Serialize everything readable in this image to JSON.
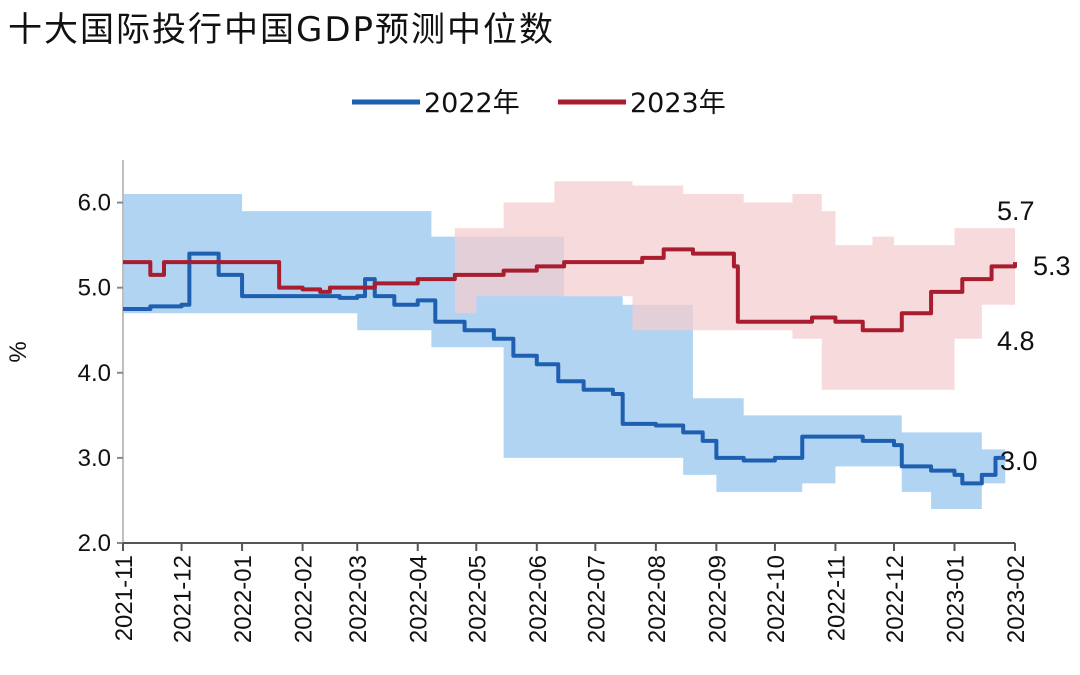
{
  "chart_data": {
    "type": "line",
    "title": "十大国际投行中国GDP预测中位数",
    "ylabel": "%",
    "xlabel": "",
    "ylim": [
      2.0,
      6.5
    ],
    "yticks": [
      "2.0",
      "3.0",
      "4.0",
      "5.0",
      "6.0"
    ],
    "grid": false,
    "legend_position": "top-center",
    "x_ticks": [
      "2021-11",
      "2021-12",
      "2022-01",
      "2022-02",
      "2022-03",
      "2022-04",
      "2022-05",
      "2022-06",
      "2022-07",
      "2022-08",
      "2022-09",
      "2022-10",
      "2022-11",
      "2022-12",
      "2023-01",
      "2023-02"
    ],
    "x_range_months": [
      "2021-11",
      "2023-02"
    ],
    "colors": {
      "2022年": "#1f5fb0",
      "2022年_band": "#a8cff2",
      "2023年": "#a81d2f",
      "2023年_band": "#f4cdcf"
    },
    "series": [
      {
        "name": "2022年",
        "band_color": "#a8cff2",
        "line_color": "#1f5fb0",
        "end_label": "3.0",
        "points": [
          [
            "2021-11-01",
            4.75
          ],
          [
            "2021-11-15",
            4.78
          ],
          [
            "2021-12-01",
            4.8
          ],
          [
            "2021-12-05",
            5.4
          ],
          [
            "2021-12-20",
            5.15
          ],
          [
            "2022-01-01",
            4.9
          ],
          [
            "2022-01-20",
            4.9
          ],
          [
            "2022-02-05",
            4.9
          ],
          [
            "2022-02-20",
            4.88
          ],
          [
            "2022-03-01",
            4.9
          ],
          [
            "2022-03-05",
            5.1
          ],
          [
            "2022-03-10",
            4.9
          ],
          [
            "2022-03-20",
            4.8
          ],
          [
            "2022-04-01",
            4.85
          ],
          [
            "2022-04-10",
            4.6
          ],
          [
            "2022-04-25",
            4.5
          ],
          [
            "2022-05-10",
            4.4
          ],
          [
            "2022-05-20",
            4.2
          ],
          [
            "2022-06-01",
            4.1
          ],
          [
            "2022-06-12",
            3.9
          ],
          [
            "2022-06-25",
            3.8
          ],
          [
            "2022-07-10",
            3.75
          ],
          [
            "2022-07-15",
            3.4
          ],
          [
            "2022-08-01",
            3.38
          ],
          [
            "2022-08-15",
            3.3
          ],
          [
            "2022-08-25",
            3.2
          ],
          [
            "2022-09-01",
            3.0
          ],
          [
            "2022-09-15",
            2.97
          ],
          [
            "2022-10-01",
            3.0
          ],
          [
            "2022-10-15",
            3.25
          ],
          [
            "2022-11-01",
            3.25
          ],
          [
            "2022-11-15",
            3.2
          ],
          [
            "2022-12-01",
            3.15
          ],
          [
            "2022-12-05",
            2.9
          ],
          [
            "2022-12-20",
            2.85
          ],
          [
            "2023-01-01",
            2.8
          ],
          [
            "2023-01-05",
            2.7
          ],
          [
            "2023-01-15",
            2.8
          ],
          [
            "2023-01-22",
            3.0
          ],
          [
            "2023-01-27",
            3.0
          ]
        ],
        "band": [
          [
            "2021-11-01",
            4.7,
            6.1
          ],
          [
            "2021-12-01",
            4.7,
            6.1
          ],
          [
            "2022-01-01",
            4.7,
            5.9
          ],
          [
            "2022-02-01",
            4.7,
            5.9
          ],
          [
            "2022-03-01",
            4.5,
            5.9
          ],
          [
            "2022-04-01",
            4.5,
            5.9
          ],
          [
            "2022-04-08",
            4.3,
            5.6
          ],
          [
            "2022-05-01",
            4.3,
            5.6
          ],
          [
            "2022-05-15",
            3.0,
            5.6
          ],
          [
            "2022-06-15",
            3.0,
            4.9
          ],
          [
            "2022-07-15",
            3.0,
            4.8
          ],
          [
            "2022-08-15",
            2.8,
            4.8
          ],
          [
            "2022-08-20",
            2.8,
            3.7
          ],
          [
            "2022-09-01",
            2.6,
            3.7
          ],
          [
            "2022-09-15",
            2.6,
            3.5
          ],
          [
            "2022-10-01",
            2.6,
            3.5
          ],
          [
            "2022-10-15",
            2.7,
            3.5
          ],
          [
            "2022-11-01",
            2.9,
            3.5
          ],
          [
            "2022-12-01",
            2.9,
            3.5
          ],
          [
            "2022-12-05",
            2.6,
            3.3
          ],
          [
            "2022-12-20",
            2.4,
            3.3
          ],
          [
            "2023-01-01",
            2.4,
            3.3
          ],
          [
            "2023-01-15",
            2.7,
            3.1
          ],
          [
            "2023-01-27",
            2.7,
            3.1
          ]
        ]
      },
      {
        "name": "2023年",
        "band_color": "#f4cdcf",
        "line_color": "#a81d2f",
        "end_label_high": "5.7",
        "end_label": "5.3",
        "end_label_low": "4.8",
        "points": [
          [
            "2021-11-01",
            5.3
          ],
          [
            "2021-11-15",
            5.15
          ],
          [
            "2021-11-22",
            5.3
          ],
          [
            "2022-01-15",
            5.3
          ],
          [
            "2022-01-20",
            5.0
          ],
          [
            "2022-02-01",
            4.98
          ],
          [
            "2022-02-10",
            4.95
          ],
          [
            "2022-02-15",
            5.0
          ],
          [
            "2022-03-10",
            5.05
          ],
          [
            "2022-04-01",
            5.1
          ],
          [
            "2022-04-20",
            5.15
          ],
          [
            "2022-05-15",
            5.2
          ],
          [
            "2022-06-01",
            5.25
          ],
          [
            "2022-06-15",
            5.3
          ],
          [
            "2022-07-10",
            5.3
          ],
          [
            "2022-07-25",
            5.35
          ],
          [
            "2022-08-05",
            5.45
          ],
          [
            "2022-08-20",
            5.4
          ],
          [
            "2022-09-10",
            5.25
          ],
          [
            "2022-09-12",
            4.6
          ],
          [
            "2022-10-01",
            4.6
          ],
          [
            "2022-10-20",
            4.65
          ],
          [
            "2022-11-01",
            4.6
          ],
          [
            "2022-11-15",
            4.5
          ],
          [
            "2022-12-01",
            4.5
          ],
          [
            "2022-12-05",
            4.7
          ],
          [
            "2022-12-20",
            4.95
          ],
          [
            "2023-01-01",
            4.95
          ],
          [
            "2023-01-05",
            5.1
          ],
          [
            "2023-01-12",
            5.1
          ],
          [
            "2023-01-20",
            5.25
          ],
          [
            "2023-02-01",
            5.3
          ]
        ],
        "band": [
          [
            "2022-04-20",
            4.7,
            5.7
          ],
          [
            "2022-05-01",
            4.9,
            5.7
          ],
          [
            "2022-05-15",
            4.9,
            6.0
          ],
          [
            "2022-06-01",
            4.9,
            6.0
          ],
          [
            "2022-06-10",
            4.9,
            6.25
          ],
          [
            "2022-07-20",
            4.5,
            6.2
          ],
          [
            "2022-08-15",
            4.5,
            6.1
          ],
          [
            "2022-09-15",
            4.5,
            6.0
          ],
          [
            "2022-10-10",
            4.4,
            6.1
          ],
          [
            "2022-10-25",
            3.8,
            5.9
          ],
          [
            "2022-11-01",
            3.8,
            5.5
          ],
          [
            "2022-11-20",
            3.8,
            5.6
          ],
          [
            "2022-12-01",
            3.8,
            5.5
          ],
          [
            "2022-12-20",
            3.8,
            5.5
          ],
          [
            "2023-01-01",
            4.4,
            5.7
          ],
          [
            "2023-01-15",
            4.8,
            5.7
          ],
          [
            "2023-02-01",
            4.8,
            5.7
          ]
        ]
      }
    ]
  },
  "axes": {
    "y_ticks": [
      "2.0",
      "3.0",
      "4.0",
      "5.0",
      "6.0"
    ],
    "y_label": "%",
    "x_ticks": [
      "2021-11",
      "2021-12",
      "2022-01",
      "2022-02",
      "2022-03",
      "2022-04",
      "2022-05",
      "2022-06",
      "2022-07",
      "2022-08",
      "2022-09",
      "2022-10",
      "2022-11",
      "2022-12",
      "2023-01",
      "2023-02"
    ]
  },
  "legend": [
    {
      "label": "2022年",
      "color": "#1f5fb0"
    },
    {
      "label": "2023年",
      "color": "#a81d2f"
    }
  ],
  "end_labels": {
    "s2023_high": "5.7",
    "s2023_mid": "5.3",
    "s2023_low": "4.8",
    "s2022_end": "3.0"
  }
}
